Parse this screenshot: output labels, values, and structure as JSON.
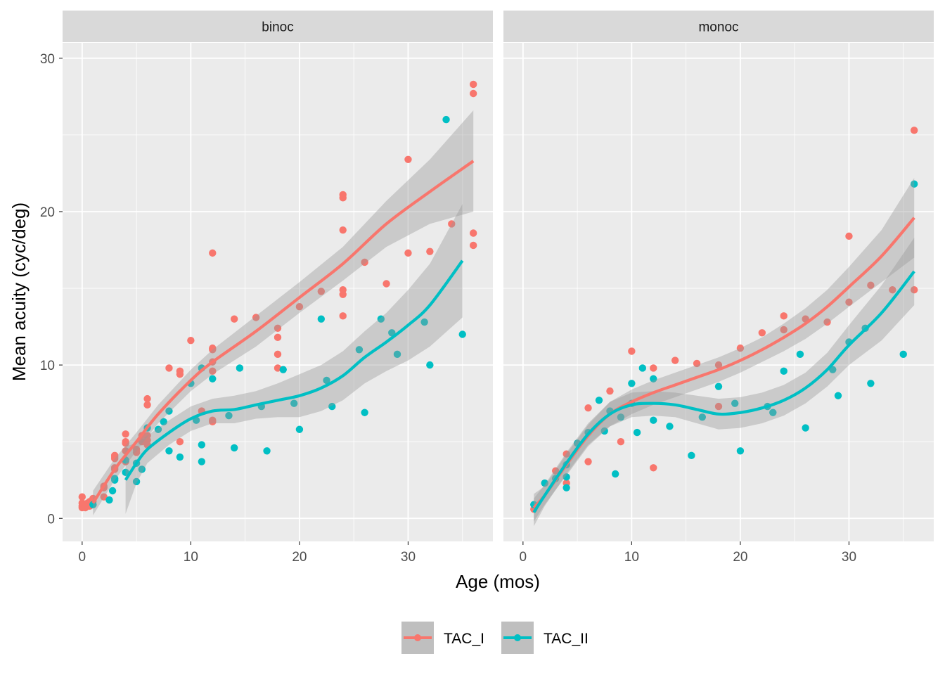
{
  "chart_data": {
    "type": "scatter",
    "xlabel": "Age (mos)",
    "ylabel": "Mean acuity (cyc/deg)",
    "xlim": [
      -1.8,
      37.8
    ],
    "ylim": [
      -1.5,
      31
    ],
    "x_ticks": [
      0,
      10,
      20,
      30
    ],
    "y_ticks": [
      0,
      10,
      20,
      30
    ],
    "grid": true,
    "legend_position": "bottom",
    "colors": {
      "TAC_I": "#F8766D",
      "TAC_II": "#00BFC4",
      "panel_bg": "#EBEBEB",
      "strip_bg": "#D9D9D9",
      "band": "#999999"
    },
    "series": [
      {
        "name": "TAC_I"
      },
      {
        "name": "TAC_II"
      }
    ],
    "panels": [
      {
        "label": "binoc",
        "points": {
          "TAC_I": [
            [
              0,
              0.7
            ],
            [
              0,
              0.8
            ],
            [
              0,
              1.0
            ],
            [
              0,
              1.4
            ],
            [
              0.3,
              0.7
            ],
            [
              0.3,
              0.9
            ],
            [
              0.5,
              0.8
            ],
            [
              0.5,
              1.0
            ],
            [
              0.7,
              0.8
            ],
            [
              0.7,
              1.1
            ],
            [
              1,
              0.9
            ],
            [
              1,
              1.1
            ],
            [
              1,
              1.3
            ],
            [
              2,
              1.4
            ],
            [
              2,
              2.0
            ],
            [
              2,
              2.1
            ],
            [
              3,
              3.2
            ],
            [
              3,
              3.3
            ],
            [
              3,
              3.9
            ],
            [
              3,
              4.0
            ],
            [
              3,
              4.1
            ],
            [
              4,
              3.7
            ],
            [
              4,
              4.4
            ],
            [
              4,
              4.9
            ],
            [
              4,
              5.0
            ],
            [
              4,
              5.5
            ],
            [
              5,
              4.3
            ],
            [
              5,
              4.5
            ],
            [
              5.5,
              5.0
            ],
            [
              5.5,
              5.4
            ],
            [
              6,
              4.8
            ],
            [
              6,
              5.1
            ],
            [
              6,
              5.4
            ],
            [
              6,
              7.4
            ],
            [
              6,
              7.8
            ],
            [
              8,
              9.8
            ],
            [
              9,
              5.0
            ],
            [
              9,
              9.4
            ],
            [
              9,
              9.6
            ],
            [
              10,
              11.6
            ],
            [
              11,
              7.0
            ],
            [
              12,
              6.3
            ],
            [
              12,
              6.4
            ],
            [
              12,
              9.6
            ],
            [
              12,
              10.2
            ],
            [
              12,
              11.0
            ],
            [
              12,
              11.1
            ],
            [
              12,
              17.3
            ],
            [
              14,
              13.0
            ],
            [
              16,
              13.1
            ],
            [
              18,
              9.8
            ],
            [
              18,
              10.7
            ],
            [
              18,
              11.8
            ],
            [
              18,
              12.4
            ],
            [
              20,
              13.8
            ],
            [
              22,
              14.8
            ],
            [
              24,
              13.2
            ],
            [
              24,
              14.6
            ],
            [
              24,
              14.9
            ],
            [
              24,
              18.8
            ],
            [
              24,
              20.9
            ],
            [
              24,
              21.1
            ],
            [
              26,
              16.7
            ],
            [
              28,
              15.3
            ],
            [
              30,
              17.3
            ],
            [
              30,
              23.4
            ],
            [
              32,
              17.4
            ],
            [
              34,
              19.2
            ],
            [
              36,
              17.8
            ],
            [
              36,
              18.6
            ],
            [
              36,
              27.7
            ],
            [
              36,
              28.3
            ]
          ],
          "TAC_II": [
            [
              1,
              0.9
            ],
            [
              2.5,
              1.2
            ],
            [
              2.8,
              1.8
            ],
            [
              3,
              2.5
            ],
            [
              3,
              2.6
            ],
            [
              4,
              3.0
            ],
            [
              4,
              3.8
            ],
            [
              5,
              2.4
            ],
            [
              5,
              3.6
            ],
            [
              5.5,
              3.2
            ],
            [
              6,
              5.9
            ],
            [
              7,
              5.8
            ],
            [
              7.5,
              6.3
            ],
            [
              8,
              4.4
            ],
            [
              8,
              7.0
            ],
            [
              9,
              4.0
            ],
            [
              10,
              8.8
            ],
            [
              10.5,
              6.4
            ],
            [
              11,
              3.7
            ],
            [
              11,
              4.8
            ],
            [
              11,
              9.8
            ],
            [
              12,
              9.1
            ],
            [
              13.5,
              6.7
            ],
            [
              14,
              4.6
            ],
            [
              14.5,
              9.8
            ],
            [
              16.5,
              7.3
            ],
            [
              17,
              4.4
            ],
            [
              18.5,
              9.7
            ],
            [
              19.5,
              7.5
            ],
            [
              20,
              5.8
            ],
            [
              22,
              13.0
            ],
            [
              22.5,
              9.0
            ],
            [
              23,
              7.3
            ],
            [
              25.5,
              11.0
            ],
            [
              26,
              6.9
            ],
            [
              27.5,
              13.0
            ],
            [
              28.5,
              12.1
            ],
            [
              29,
              10.7
            ],
            [
              31.5,
              12.8
            ],
            [
              32,
              10.0
            ],
            [
              33.5,
              26.0
            ],
            [
              35,
              12.0
            ]
          ]
        },
        "smooth": {
          "TAC_I": {
            "x": [
              1,
              3,
              5,
              7,
              10,
              12,
              16,
              20,
              24,
              28,
              32,
              36
            ],
            "y": [
              1.0,
              3.2,
              5.0,
              6.8,
              9.0,
              10.2,
              12.2,
              14.4,
              16.6,
              19.2,
              21.3,
              23.3
            ],
            "lo": [
              0.2,
              2.5,
              4.4,
              6.2,
              8.3,
              9.4,
              11.2,
              13.4,
              15.5,
              17.7,
              19.2,
              20.0
            ],
            "hi": [
              1.8,
              3.9,
              5.6,
              7.4,
              9.7,
              11.0,
              13.2,
              15.4,
              17.7,
              20.7,
              23.4,
              26.6
            ]
          },
          "TAC_II": {
            "x": [
              4,
              5,
              6,
              8,
              10,
              12,
              14,
              16,
              18,
              20,
              22,
              24,
              26,
              28,
              30,
              32,
              35
            ],
            "y": [
              2.5,
              3.6,
              4.5,
              5.6,
              6.5,
              7.0,
              7.1,
              7.4,
              7.7,
              8.0,
              8.5,
              9.3,
              10.5,
              11.5,
              12.6,
              13.9,
              16.8
            ],
            "lo": [
              0.3,
              2.3,
              3.6,
              4.8,
              5.7,
              6.2,
              6.2,
              6.5,
              6.6,
              6.6,
              7.0,
              7.7,
              8.8,
              9.6,
              10.3,
              11.2,
              13.1
            ],
            "hi": [
              4.7,
              4.9,
              5.4,
              6.4,
              7.3,
              7.8,
              8.0,
              8.3,
              8.8,
              9.4,
              10.0,
              10.9,
              12.2,
              13.4,
              14.9,
              16.6,
              20.5
            ]
          }
        }
      },
      {
        "label": "monoc",
        "points": {
          "TAC_I": [
            [
              1,
              0.6
            ],
            [
              2,
              2.3
            ],
            [
              3,
              3.1
            ],
            [
              4,
              4.2
            ],
            [
              4,
              2.3
            ],
            [
              6,
              7.2
            ],
            [
              6,
              3.7
            ],
            [
              8,
              8.3
            ],
            [
              9,
              5.0
            ],
            [
              10,
              10.9
            ],
            [
              12,
              9.8
            ],
            [
              12,
              3.3
            ],
            [
              14,
              10.3
            ],
            [
              16,
              10.1
            ],
            [
              18,
              10.0
            ],
            [
              18,
              7.3
            ],
            [
              20,
              11.1
            ],
            [
              22,
              12.1
            ],
            [
              24,
              13.2
            ],
            [
              24,
              12.3
            ],
            [
              26,
              13.0
            ],
            [
              28,
              12.8
            ],
            [
              30,
              18.4
            ],
            [
              30,
              14.1
            ],
            [
              32,
              15.2
            ],
            [
              34,
              14.9
            ],
            [
              36,
              25.3
            ],
            [
              36,
              14.9
            ]
          ],
          "TAC_II": [
            [
              1,
              0.9
            ],
            [
              2,
              2.3
            ],
            [
              3,
              2.6
            ],
            [
              4,
              3.5
            ],
            [
              4,
              2.7
            ],
            [
              4,
              2.0
            ],
            [
              5,
              4.9
            ],
            [
              6,
              5.6
            ],
            [
              7,
              7.7
            ],
            [
              7.5,
              5.7
            ],
            [
              8,
              7.0
            ],
            [
              8.5,
              2.9
            ],
            [
              9,
              6.6
            ],
            [
              10,
              7.5
            ],
            [
              10,
              8.8
            ],
            [
              10.5,
              5.6
            ],
            [
              11,
              9.8
            ],
            [
              12,
              9.1
            ],
            [
              12,
              6.4
            ],
            [
              13.5,
              6.0
            ],
            [
              15.5,
              4.1
            ],
            [
              16.5,
              6.6
            ],
            [
              18,
              8.6
            ],
            [
              19.5,
              7.5
            ],
            [
              20,
              4.4
            ],
            [
              22.5,
              7.3
            ],
            [
              23,
              6.9
            ],
            [
              24,
              9.6
            ],
            [
              25.5,
              10.7
            ],
            [
              26,
              5.9
            ],
            [
              28.5,
              9.7
            ],
            [
              29,
              8.0
            ],
            [
              30,
              11.5
            ],
            [
              31.5,
              12.4
            ],
            [
              32,
              8.8
            ],
            [
              35,
              10.7
            ],
            [
              36,
              21.8
            ]
          ]
        },
        "smooth": {
          "TAC_I": {
            "x": [
              1,
              2,
              4,
              6,
              8,
              10,
              12,
              14,
              16,
              18,
              20,
              22,
              24,
              26,
              28,
              30,
              33,
              36
            ],
            "y": [
              0.7,
              1.5,
              3.5,
              5.4,
              6.8,
              7.6,
              8.2,
              8.7,
              9.2,
              9.7,
              10.3,
              11.0,
              11.8,
              12.7,
              13.8,
              15.1,
              17.1,
              19.6
            ],
            "lo": [
              -0.2,
              0.9,
              2.8,
              4.7,
              6.0,
              6.8,
              7.4,
              7.9,
              8.4,
              8.9,
              9.5,
              10.2,
              10.9,
              11.7,
              12.7,
              13.8,
              15.4,
              17.0
            ],
            "hi": [
              1.6,
              2.1,
              4.2,
              6.1,
              7.6,
              8.4,
              9.0,
              9.5,
              10.0,
              10.5,
              11.1,
              11.8,
              12.7,
              13.7,
              14.9,
              16.4,
              18.8,
              22.2
            ]
          },
          "TAC_II": {
            "x": [
              1,
              2,
              4,
              6,
              8,
              10,
              12,
              14,
              16,
              18,
              20,
              22,
              24,
              26,
              28,
              30,
              33,
              36
            ],
            "y": [
              0.4,
              1.5,
              3.6,
              5.5,
              6.8,
              7.4,
              7.5,
              7.4,
              7.1,
              6.8,
              6.9,
              7.2,
              7.7,
              8.5,
              9.7,
              11.3,
              13.4,
              16.1
            ],
            "lo": [
              -0.5,
              0.8,
              2.9,
              4.8,
              6.0,
              6.6,
              6.7,
              6.6,
              6.2,
              5.8,
              5.9,
              6.2,
              6.7,
              7.5,
              8.6,
              10.0,
              11.6,
              13.9
            ],
            "hi": [
              1.3,
              2.2,
              4.3,
              6.2,
              7.6,
              8.2,
              8.3,
              8.2,
              8.0,
              7.8,
              7.9,
              8.2,
              8.7,
              9.5,
              10.8,
              12.6,
              15.2,
              18.3
            ]
          }
        }
      }
    ]
  }
}
